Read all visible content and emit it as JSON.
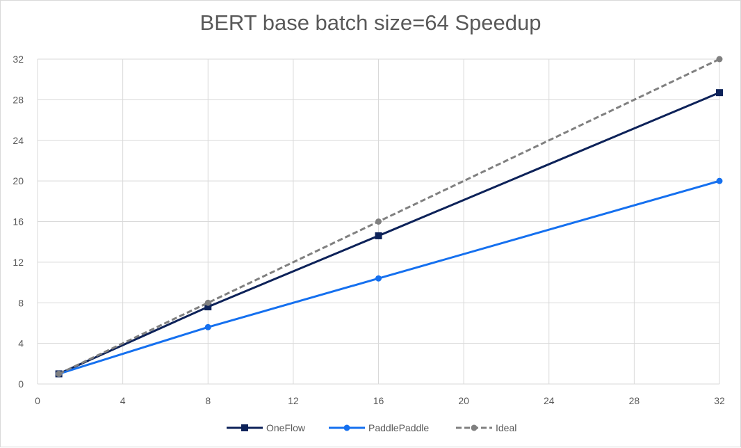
{
  "chart_data": {
    "type": "line",
    "title": "BERT base batch size=64 Speedup",
    "xlabel": "",
    "ylabel": "",
    "xlim": [
      0,
      32
    ],
    "ylim": [
      0,
      32
    ],
    "xticks": [
      0,
      4,
      8,
      12,
      16,
      20,
      24,
      28,
      32
    ],
    "yticks": [
      0,
      4,
      8,
      12,
      16,
      20,
      24,
      28,
      32
    ],
    "grid": true,
    "legend_position": "bottom",
    "series": [
      {
        "name": "OneFlow",
        "color": "#0d2259",
        "marker": "square",
        "dash": "solid",
        "x": [
          1,
          8,
          16,
          32
        ],
        "y": [
          1,
          7.6,
          14.6,
          28.7
        ]
      },
      {
        "name": "PaddlePaddle",
        "color": "#1570ef",
        "marker": "circle",
        "dash": "solid",
        "x": [
          1,
          8,
          16,
          32
        ],
        "y": [
          1,
          5.6,
          10.4,
          20.0
        ]
      },
      {
        "name": "Ideal",
        "color": "#808080",
        "marker": "circle",
        "dash": "dashed",
        "x": [
          1,
          8,
          16,
          32
        ],
        "y": [
          1,
          8,
          16,
          32
        ]
      }
    ]
  }
}
